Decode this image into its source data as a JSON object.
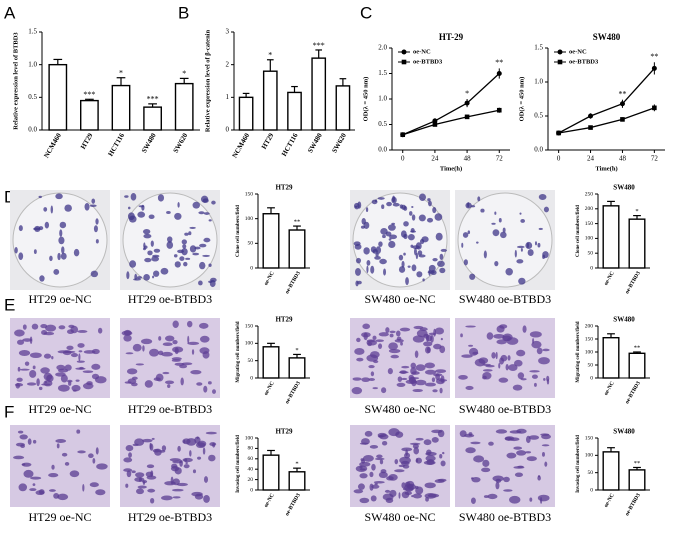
{
  "panel_labels": [
    "A",
    "B",
    "C",
    "D",
    "E",
    "F"
  ],
  "image_rows": [
    {
      "captions": [
        "HT29 oe-NC",
        "HT29 oe-BTBD3",
        "SW480 oe-NC",
        "SW480 oe-BTBD3"
      ]
    },
    {
      "captions": [
        "HT29 oe-NC",
        "HT29 oe-BTBD3",
        "SW480 oe-NC",
        "SW480 oe-BTBD3"
      ]
    },
    {
      "captions": [
        "HT29 oe-NC",
        "HT29 oe-BTBD3",
        "SW480 oe-NC",
        "SW480 oe-BTBD3"
      ]
    }
  ],
  "chart_data": [
    {
      "type": "bar",
      "y_label": "Relative expression level of BTBD3",
      "categories": [
        "NCM460",
        "HT29",
        "HCT116",
        "SW480",
        "SW620"
      ],
      "values": [
        1.0,
        0.45,
        0.68,
        0.35,
        0.71
      ],
      "errors": [
        0.08,
        0.02,
        0.12,
        0.05,
        0.08
      ],
      "annotations": [
        null,
        "***",
        "*",
        "***",
        "*"
      ],
      "ylim": [
        0,
        1.5
      ],
      "yticks": [
        {
          "value": 0,
          "label": "0.0"
        },
        {
          "value": 0.5,
          "label": "0.5"
        },
        {
          "value": 1,
          "label": "1.0"
        },
        {
          "value": 1.5,
          "label": "1.5"
        }
      ],
      "color": "#ffffff"
    },
    {
      "type": "bar",
      "y_label": "Relative expression level of β-catenin",
      "categories": [
        "NCM460",
        "HT29",
        "HCT116",
        "SW480",
        "SW620"
      ],
      "values": [
        1.0,
        1.8,
        1.15,
        2.2,
        1.35
      ],
      "errors": [
        0.12,
        0.35,
        0.18,
        0.25,
        0.22
      ],
      "annotations": [
        null,
        "*",
        null,
        "***",
        null
      ],
      "ylim": [
        0,
        3
      ],
      "yticks": [
        0,
        1,
        2,
        3
      ],
      "color": "#ffffff"
    },
    {
      "type": "line",
      "title": "HT-29",
      "x_label": "Time(h)",
      "y_label": "OD(λ = 450 nm)",
      "x": [
        0,
        24,
        48,
        72
      ],
      "xlim": [
        -8,
        80
      ],
      "xticks": [
        0,
        24,
        48,
        72
      ],
      "series": [
        {
          "name": "oe-NC",
          "color": "#000000",
          "marker": "circle",
          "values": [
            0.3,
            0.57,
            0.92,
            1.5
          ],
          "errors": [
            0.03,
            0.05,
            0.08,
            0.1
          ]
        },
        {
          "name": "oe-BTBD3",
          "color": "#000000",
          "marker": "square",
          "values": [
            0.3,
            0.5,
            0.65,
            0.78
          ],
          "errors": [
            0.03,
            0.03,
            0.04,
            0.05
          ]
        }
      ],
      "annotations": [
        null,
        null,
        "*",
        "**"
      ],
      "ylim": [
        0,
        2
      ],
      "yticks": [
        {
          "value": 0,
          "label": "0.0"
        },
        {
          "value": 0.5,
          "label": "0.5"
        },
        {
          "value": 1,
          "label": "1.0"
        },
        {
          "value": 1.5,
          "label": "1.5"
        },
        {
          "value": 2,
          "label": "2.0"
        }
      ]
    },
    {
      "type": "line",
      "title": "SW480",
      "x_label": "Time(h)",
      "y_label": "OD(λ = 450 nm)",
      "x": [
        0,
        24,
        48,
        72
      ],
      "xlim": [
        -8,
        80
      ],
      "xticks": [
        0,
        24,
        48,
        72
      ],
      "series": [
        {
          "name": "oe-NC",
          "color": "#000000",
          "marker": "circle",
          "values": [
            0.25,
            0.5,
            0.68,
            1.2
          ],
          "errors": [
            0.02,
            0.04,
            0.06,
            0.09
          ]
        },
        {
          "name": "oe-BTBD3",
          "color": "#000000",
          "marker": "square",
          "values": [
            0.25,
            0.33,
            0.45,
            0.62
          ],
          "errors": [
            0.02,
            0.02,
            0.03,
            0.05
          ]
        }
      ],
      "annotations": [
        null,
        null,
        "**",
        "**"
      ],
      "ylim": [
        0,
        1.5
      ],
      "yticks": [
        {
          "value": 0,
          "label": "0.0"
        },
        {
          "value": 0.5,
          "label": "0.5"
        },
        {
          "value": 1,
          "label": "1.0"
        },
        {
          "value": 1.5,
          "label": "1.5"
        }
      ]
    },
    {
      "type": "bar",
      "title": "HT29",
      "y_label": "Clone cell numbers/field",
      "categories": [
        "oe-NC",
        "oe-BTBD3"
      ],
      "values": [
        110,
        77
      ],
      "errors": [
        12,
        8
      ],
      "annotations": [
        null,
        "**"
      ],
      "ylim": [
        0,
        150
      ],
      "yticks": [
        0,
        50,
        100,
        150
      ],
      "color": "#ffffff"
    },
    {
      "type": "bar",
      "title": "SW480",
      "y_label": "Clone cell numbers/field",
      "categories": [
        "oe-NC",
        "oe-BTBD3"
      ],
      "values": [
        210,
        165
      ],
      "errors": [
        15,
        12
      ],
      "annotations": [
        null,
        "*"
      ],
      "ylim": [
        0,
        250
      ],
      "yticks": [
        0,
        50,
        100,
        150,
        200,
        250
      ],
      "color": "#ffffff"
    },
    {
      "type": "bar",
      "title": "HT29",
      "y_label": "Migrating cell numbers/field",
      "categories": [
        "oe-NC",
        "oe-BTBD3"
      ],
      "values": [
        90,
        58
      ],
      "errors": [
        10,
        10
      ],
      "annotations": [
        null,
        "*"
      ],
      "ylim": [
        0,
        150
      ],
      "yticks": [
        0,
        50,
        100,
        150
      ],
      "color": "#ffffff"
    },
    {
      "type": "bar",
      "title": "SW480",
      "y_label": "Migrating cell numbers/field",
      "categories": [
        "oe-NC",
        "oe-BTBD3"
      ],
      "values": [
        155,
        95
      ],
      "errors": [
        15,
        5
      ],
      "annotations": [
        null,
        "**"
      ],
      "ylim": [
        0,
        200
      ],
      "yticks": [
        0,
        50,
        100,
        150,
        200
      ],
      "color": "#ffffff"
    },
    {
      "type": "bar",
      "title": "HT29",
      "y_label": "Invasing cell numbers/field",
      "categories": [
        "oe-NC",
        "oe-BTBD3"
      ],
      "values": [
        67,
        35
      ],
      "errors": [
        9,
        7
      ],
      "annotations": [
        null,
        "*"
      ],
      "ylim": [
        0,
        100
      ],
      "yticks": [
        0,
        20,
        40,
        60,
        80,
        100
      ],
      "color": "#ffffff"
    },
    {
      "type": "bar",
      "title": "SW480",
      "y_label": "Invasing cell numbers/field",
      "categories": [
        "oe-NC",
        "oe-BTBD3"
      ],
      "values": [
        110,
        58
      ],
      "errors": [
        12,
        7
      ],
      "annotations": [
        null,
        "**"
      ],
      "ylim": [
        0,
        150
      ],
      "yticks": [
        0,
        50,
        100,
        150
      ],
      "color": "#ffffff"
    }
  ]
}
